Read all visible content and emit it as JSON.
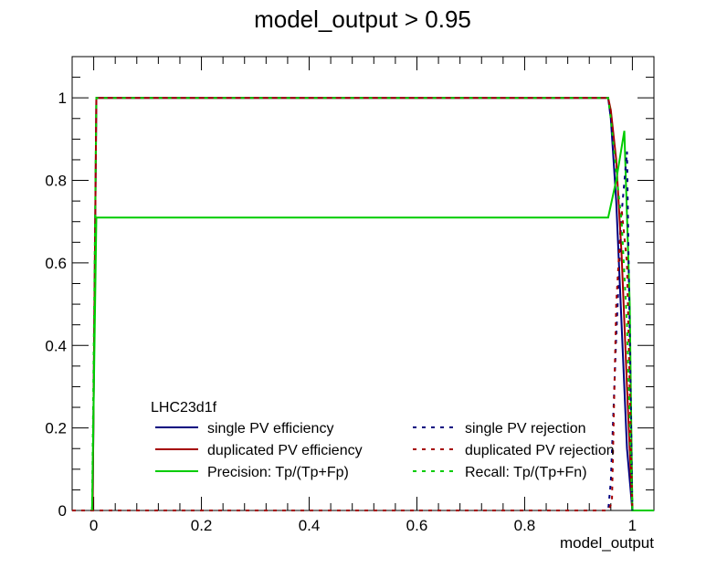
{
  "chart_data": {
    "type": "line",
    "title": "model_output > 0.95",
    "xlabel": "model_output",
    "ylabel": "",
    "xlim": [
      -0.04,
      1.04
    ],
    "ylim": [
      0,
      1.1
    ],
    "x_ticks": [
      "0",
      "0.2",
      "0.4",
      "0.6",
      "0.8",
      "1"
    ],
    "y_ticks": [
      "0",
      "0.2",
      "0.4",
      "0.6",
      "0.8",
      "1"
    ],
    "legend_header": "LHC23d1f",
    "legend_position": "bottom-left",
    "grid": false,
    "series": [
      {
        "name": "single PV efficiency",
        "color": "#00007f",
        "style": "solid",
        "points": [
          [
            -0.002,
            0
          ],
          [
            0.005,
            1.0
          ],
          [
            0.955,
            1.0
          ],
          [
            0.96,
            0.95
          ],
          [
            0.97,
            0.75
          ],
          [
            0.98,
            0.45
          ],
          [
            0.99,
            0.15
          ],
          [
            1.0,
            0.0
          ],
          [
            1.04,
            0.0
          ]
        ]
      },
      {
        "name": "duplicated PV efficiency",
        "color": "#a50000",
        "style": "solid",
        "points": [
          [
            -0.002,
            0
          ],
          [
            0.005,
            1.0
          ],
          [
            0.955,
            1.0
          ],
          [
            0.96,
            0.97
          ],
          [
            0.97,
            0.85
          ],
          [
            0.98,
            0.62
          ],
          [
            0.99,
            0.3
          ],
          [
            1.0,
            0.0
          ],
          [
            1.04,
            0.0
          ]
        ]
      },
      {
        "name": "Precision: Tp/(Tp+Fp)",
        "color": "#00cc00",
        "style": "solid",
        "points": [
          [
            -0.003,
            0
          ],
          [
            0.005,
            0.71
          ],
          [
            0.955,
            0.71
          ],
          [
            0.97,
            0.8
          ],
          [
            0.985,
            0.92
          ],
          [
            0.995,
            0.5
          ],
          [
            1.0,
            0.0
          ],
          [
            1.04,
            0.0
          ]
        ]
      },
      {
        "name": "single PV rejection",
        "color": "#00007f",
        "style": "dashed",
        "points": [
          [
            -0.04,
            0
          ],
          [
            0.955,
            0
          ],
          [
            0.96,
            0.07
          ],
          [
            0.97,
            0.42
          ],
          [
            0.98,
            0.72
          ],
          [
            0.99,
            0.87
          ],
          [
            1.0,
            0.0
          ]
        ]
      },
      {
        "name": "duplicated PV rejection",
        "color": "#a50000",
        "style": "dashed",
        "points": [
          [
            -0.04,
            0
          ],
          [
            0.955,
            0
          ],
          [
            0.962,
            0.02
          ],
          [
            0.97,
            0.5
          ],
          [
            0.98,
            0.73
          ],
          [
            0.99,
            0.6
          ],
          [
            1.0,
            0.0
          ]
        ]
      },
      {
        "name": "Recall: Tp/(Tp+Fn)",
        "color": "#00cc00",
        "style": "dashed",
        "points": [
          [
            -0.003,
            0
          ],
          [
            0.005,
            1.0
          ],
          [
            0.955,
            1.0
          ],
          [
            0.96,
            0.95
          ],
          [
            0.97,
            0.82
          ],
          [
            0.98,
            0.7
          ],
          [
            0.99,
            0.45
          ],
          [
            1.0,
            0.0
          ]
        ]
      }
    ]
  }
}
